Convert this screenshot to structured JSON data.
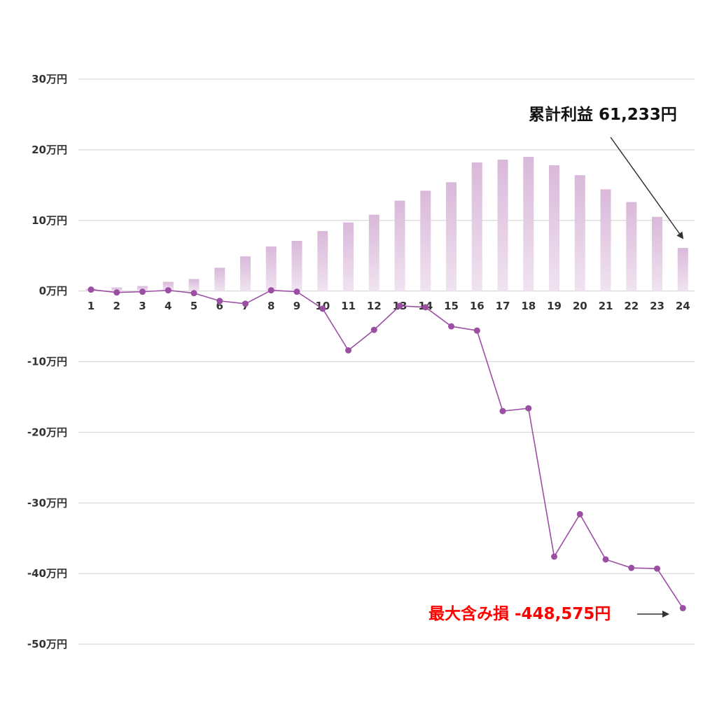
{
  "chart_data": {
    "type": "bar+line",
    "y_unit_suffix": "万円",
    "ylim": [
      -50,
      30
    ],
    "yticks": [
      30,
      20,
      10,
      0,
      -10,
      -20,
      -30,
      -40,
      -50
    ],
    "ytick_labels": [
      "30万円",
      "20万円",
      "10万円",
      "0万円",
      "-10万円",
      "-20万円",
      "-30万円",
      "-40万円",
      "-50万円"
    ],
    "grid": true,
    "categories": [
      "1",
      "2",
      "3",
      "4",
      "5",
      "6",
      "7",
      "8",
      "9",
      "10",
      "11",
      "12",
      "13",
      "14",
      "15",
      "16",
      "17",
      "18",
      "19",
      "20",
      "21",
      "22",
      "23",
      "24"
    ],
    "series": [
      {
        "kind": "bar",
        "values": [
          0.3,
          0.5,
          0.7,
          1.3,
          1.7,
          3.3,
          4.9,
          6.3,
          7.1,
          8.5,
          9.7,
          10.8,
          12.8,
          14.2,
          15.4,
          18.2,
          18.6,
          19.0,
          17.8,
          16.4,
          14.4,
          12.6,
          10.5,
          6.1
        ],
        "color": "#dcbfdc"
      },
      {
        "kind": "line",
        "values": [
          0.2,
          -0.2,
          -0.1,
          0.1,
          -0.3,
          -1.4,
          -1.8,
          0.1,
          -0.1,
          -2.5,
          -8.4,
          -5.5,
          -2.1,
          -2.3,
          -5.0,
          -5.6,
          -17.0,
          -16.6,
          -37.6,
          -31.6,
          -38.0,
          -39.2,
          -39.3,
          -44.9
        ],
        "color": "#9b4fa3"
      }
    ],
    "annotations": [
      {
        "text": "累計利益 61,233円",
        "color": "#111111"
      },
      {
        "text": "最大含み損 -448,575円",
        "color": "#ff0000"
      }
    ]
  }
}
